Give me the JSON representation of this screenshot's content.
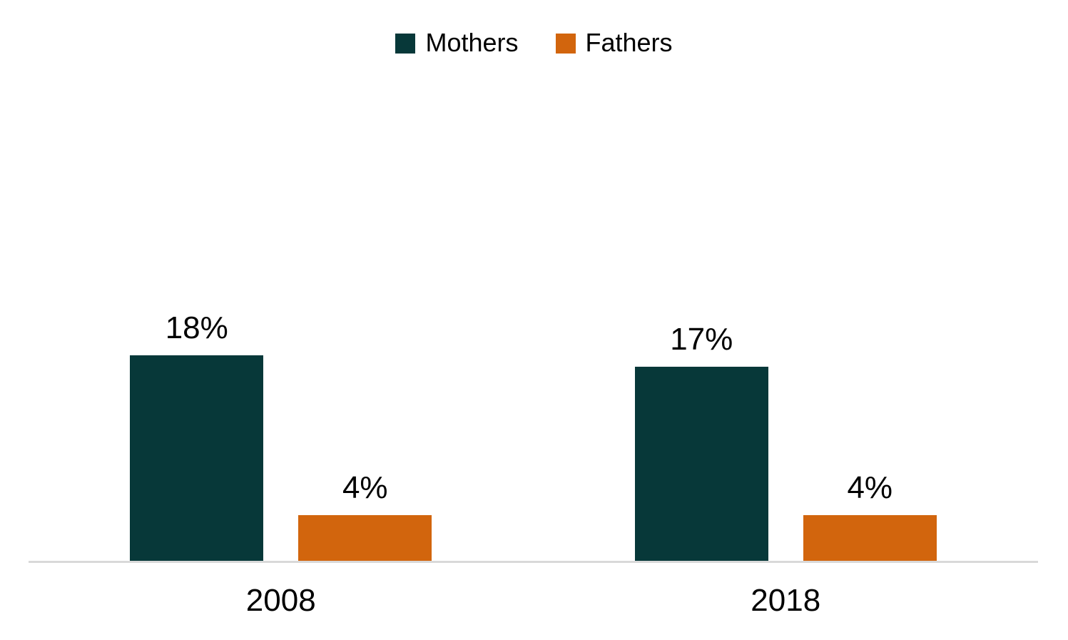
{
  "chart_data": {
    "type": "bar",
    "title": "",
    "xlabel": "",
    "ylabel": "",
    "categories": [
      "2008",
      "2018"
    ],
    "series": [
      {
        "name": "Mothers",
        "color": "#073839",
        "values": [
          18,
          17
        ],
        "labels": [
          "18%",
          "17%"
        ]
      },
      {
        "name": "Fathers",
        "color": "#D2650D",
        "values": [
          4,
          4
        ],
        "labels": [
          "4%",
          "4%"
        ]
      }
    ],
    "value_suffix": "%",
    "ylim": [
      0,
      20
    ],
    "grid": false,
    "legend_position": "top-center",
    "axis_line_color": "#D9D9D9",
    "label_color": "#000000",
    "background_color": "#FFFFFF"
  }
}
